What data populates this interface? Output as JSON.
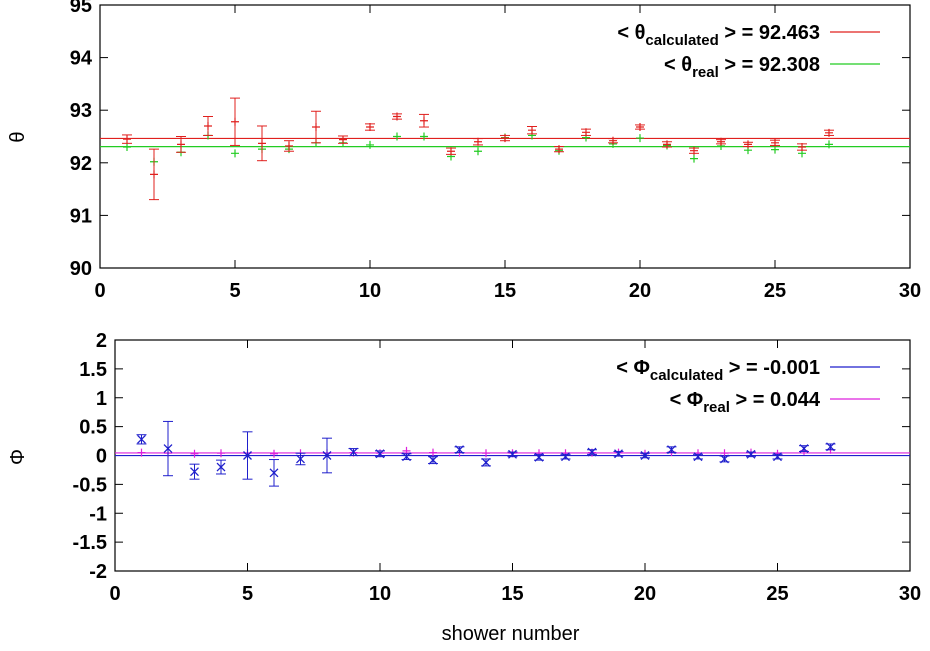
{
  "chart_data": [
    {
      "type": "scatter",
      "xlabel": "",
      "ylabel": "θ",
      "xlim": [
        0,
        30
      ],
      "ylim": [
        90,
        95
      ],
      "xticks": [
        0,
        5,
        10,
        15,
        20,
        25,
        30
      ],
      "yticks": [
        90,
        91,
        92,
        93,
        94,
        95
      ],
      "legend_position": "top-right",
      "series": [
        {
          "name_prefix": "< θ",
          "name_sub": "calculated",
          "name_suffix": " > = 92.463",
          "color": "#e0201e",
          "mean": 92.463,
          "marker": "plus-errorbar",
          "x": [
            1,
            2,
            3,
            4,
            5,
            6,
            7,
            8,
            9,
            10,
            11,
            12,
            13,
            14,
            15,
            16,
            17,
            18,
            19,
            20,
            21,
            22,
            23,
            24,
            25,
            26,
            27
          ],
          "y": [
            92.45,
            91.78,
            92.35,
            92.7,
            92.78,
            92.37,
            92.32,
            92.68,
            92.44,
            92.68,
            92.88,
            92.8,
            92.22,
            92.4,
            92.47,
            92.62,
            92.26,
            92.58,
            92.42,
            92.68,
            92.35,
            92.23,
            92.4,
            92.35,
            92.38,
            92.3,
            92.57
          ],
          "err": [
            0.08,
            0.48,
            0.15,
            0.18,
            0.45,
            0.33,
            0.1,
            0.3,
            0.07,
            0.06,
            0.05,
            0.12,
            0.06,
            0.06,
            0.05,
            0.07,
            0.05,
            0.06,
            0.04,
            0.04,
            0.05,
            0.05,
            0.04,
            0.04,
            0.05,
            0.06,
            0.05
          ]
        },
        {
          "name_prefix": "< θ",
          "name_sub": "real",
          "name_suffix": " > = 92.308",
          "color": "#22cc22",
          "mean": 92.308,
          "marker": "plus",
          "x": [
            1,
            2,
            3,
            4,
            5,
            6,
            7,
            8,
            9,
            10,
            11,
            12,
            13,
            14,
            15,
            16,
            17,
            18,
            19,
            20,
            21,
            22,
            23,
            24,
            25,
            26,
            27
          ],
          "y": [
            92.3,
            92.02,
            92.2,
            92.52,
            92.18,
            92.26,
            92.26,
            92.38,
            92.38,
            92.34,
            92.5,
            92.5,
            92.12,
            92.22,
            92.48,
            92.52,
            92.23,
            92.48,
            92.36,
            92.47,
            92.33,
            92.08,
            92.32,
            92.24,
            92.25,
            92.18,
            92.35
          ]
        }
      ]
    },
    {
      "type": "scatter",
      "xlabel": "shower number",
      "ylabel": "Φ",
      "xlim": [
        0,
        30
      ],
      "ylim": [
        -2,
        2
      ],
      "xticks": [
        0,
        5,
        10,
        15,
        20,
        25,
        30
      ],
      "yticks": [
        -2,
        -1.5,
        -1,
        -0.5,
        0,
        0.5,
        1,
        1.5,
        2
      ],
      "ytick_labels": [
        "-2",
        "-1.5",
        "-1",
        "-0.5",
        "0",
        "0.5",
        "1",
        "1.5",
        "2"
      ],
      "legend_position": "top-right",
      "series": [
        {
          "name_prefix": "< Φ",
          "name_sub": "calculated",
          "name_suffix": " > = -0.001",
          "color": "#1f1fcc",
          "mean": -0.001,
          "marker": "x-errorbar",
          "x": [
            1,
            2,
            3,
            4,
            5,
            6,
            7,
            8,
            9,
            10,
            11,
            12,
            13,
            14,
            15,
            16,
            17,
            18,
            19,
            20,
            21,
            22,
            23,
            24,
            25,
            26,
            27
          ],
          "y": [
            0.28,
            0.12,
            -0.28,
            -0.2,
            0,
            -0.3,
            -0.06,
            0,
            0.06,
            0.03,
            -0.02,
            -0.08,
            0.1,
            -0.12,
            0.02,
            -0.03,
            -0.02,
            0.06,
            0.03,
            0.0,
            0.1,
            -0.02,
            -0.06,
            0.02,
            -0.02,
            0.12,
            0.15
          ],
          "err": [
            0.08,
            0.47,
            0.13,
            0.12,
            0.41,
            0.23,
            0.1,
            0.3,
            0.06,
            0.05,
            0.05,
            0.06,
            0.05,
            0.06,
            0.04,
            0.05,
            0.04,
            0.04,
            0.04,
            0.04,
            0.05,
            0.04,
            0.05,
            0.04,
            0.04,
            0.05,
            0.05
          ]
        },
        {
          "name_prefix": "< Φ",
          "name_sub": "real",
          "name_suffix": " > = 0.044",
          "color": "#dd22dd",
          "mean": 0.044,
          "marker": "plus",
          "x": [
            1,
            2,
            3,
            4,
            5,
            6,
            7,
            8,
            9,
            10,
            11,
            12,
            13,
            14,
            15,
            16,
            17,
            18,
            19,
            20,
            21,
            22,
            23,
            24,
            25,
            26,
            27
          ],
          "y": [
            0.05,
            0.04,
            0.03,
            0.04,
            0.04,
            0.03,
            0.04,
            0.04,
            0.05,
            0.04,
            0.08,
            0.05,
            0.05,
            0.04,
            0.04,
            0.04,
            0.04,
            0.05,
            0.05,
            0.03,
            0.06,
            0.04,
            0.04,
            0.05,
            0.03,
            0.08,
            0.1
          ]
        }
      ]
    }
  ]
}
